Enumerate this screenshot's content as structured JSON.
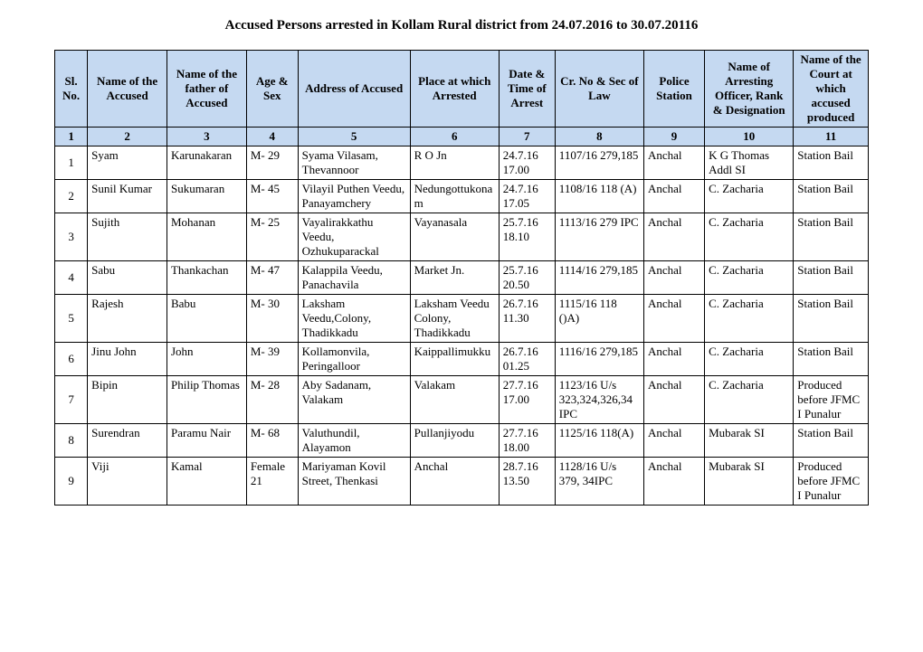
{
  "title": "Accused Persons arrested in  Kollam Rural  district from   24.07.2016 to 30.07.20116",
  "headers": [
    "Sl. No.",
    "Name of the Accused",
    "Name of the father of Accused",
    "Age & Sex",
    "Address of Accused",
    "Place at which Arrested",
    "Date & Time of Arrest",
    "Cr. No & Sec of Law",
    "Police Station",
    "Name of Arresting Officer, Rank & Designation",
    "Name of the Court at which accused produced"
  ],
  "numrow": [
    "1",
    "2",
    "3",
    "4",
    "5",
    "6",
    "7",
    "8",
    "9",
    "10",
    "11"
  ],
  "rows": [
    {
      "sl": "1",
      "c2": "Syam",
      "c3": "Karunakaran",
      "c4": "M-   29",
      "c5": "Syama Vilasam, Thevannoor",
      "c6": "R O Jn",
      "c7": "24.7.16 17.00",
      "c8": "1107/16 279,185",
      "c9": "Anchal",
      "c10": "K G Thomas Addl SI",
      "c11": "Station Bail"
    },
    {
      "sl": "2",
      "c2": "Sunil Kumar",
      "c3": "Sukumaran",
      "c4": "M-  45",
      "c5": "Vilayil Puthen Veedu, Panayamchery",
      "c6": "Nedungottukonam",
      "c7": "24.7.16 17.05",
      "c8": "1108/16   118 (A)",
      "c9": "Anchal",
      "c10": "C. Zacharia",
      "c11": "Station Bail"
    },
    {
      "sl": "3",
      "c2": "Sujith",
      "c3": "Mohanan",
      "c4": "M-  25",
      "c5": "Vayalirakkathu Veedu, Ozhukuparackal",
      "c6": "Vayanasala",
      "c7": "25.7.16 18.10",
      "c8": "1113/16   279 IPC",
      "c9": "Anchal",
      "c10": "C. Zacharia",
      "c11": "Station Bail"
    },
    {
      "sl": "4",
      "c2": "Sabu",
      "c3": "Thankachan",
      "c4": "M-  47",
      "c5": "Kalappila Veedu, Panachavila",
      "c6": "Market Jn.",
      "c7": "25.7.16 20.50",
      "c8": "1114/16 279,185",
      "c9": "Anchal",
      "c10": "C. Zacharia",
      "c11": "Station Bail"
    },
    {
      "sl": "5",
      "c2": "Rajesh",
      "c3": "Babu",
      "c4": "M-  30",
      "c5": "Laksham Veedu,Colony, Thadikkadu",
      "c6": "Laksham Veedu Colony, Thadikkadu",
      "c7": "26.7.16 11.30",
      "c8": "1115/16   118 ()A)",
      "c9": "Anchal",
      "c10": "C. Zacharia",
      "c11": "Station Bail"
    },
    {
      "sl": "6",
      "c2": "Jinu John",
      "c3": "John",
      "c4": "M-  39",
      "c5": "Kollamonvila, Peringalloor",
      "c6": "Kaippallimukku",
      "c7": "26.7.16 01.25",
      "c8": "1116/16 279,185",
      "c9": "Anchal",
      "c10": "C. Zacharia",
      "c11": "Station Bail"
    },
    {
      "sl": "7",
      "c2": "Bipin",
      "c3": "Philip Thomas",
      "c4": "M-  28",
      "c5": "Aby Sadanam, Valakam",
      "c6": "Valakam",
      "c7": "27.7.16 17.00",
      "c8": "1123/16 U/s 323,324,326,34 IPC",
      "c9": "Anchal",
      "c10": "C. Zacharia",
      "c11": "Produced before JFMC I Punalur"
    },
    {
      "sl": "8",
      "c2": "Surendran",
      "c3": "Paramu Nair",
      "c4": "M-  68",
      "c5": "Valuthundil, Alayamon",
      "c6": "Pullanjiyodu",
      "c7": "27.7.16 18.00",
      "c8": "1125/16 118(A)",
      "c9": "Anchal",
      "c10": "Mubarak   SI",
      "c11": "Station Bail"
    },
    {
      "sl": "9",
      "c2": "Viji",
      "c3": "Kamal",
      "c4": "Female 21",
      "c5": "Mariyaman Kovil Street, Thenkasi",
      "c6": "Anchal",
      "c7": "28.7.16 13.50",
      "c8": "1128/16   U/s 379, 34IPC",
      "c9": "Anchal",
      "c10": "Mubarak   SI",
      "c11": "Produced before JFMC I Punalur"
    }
  ]
}
